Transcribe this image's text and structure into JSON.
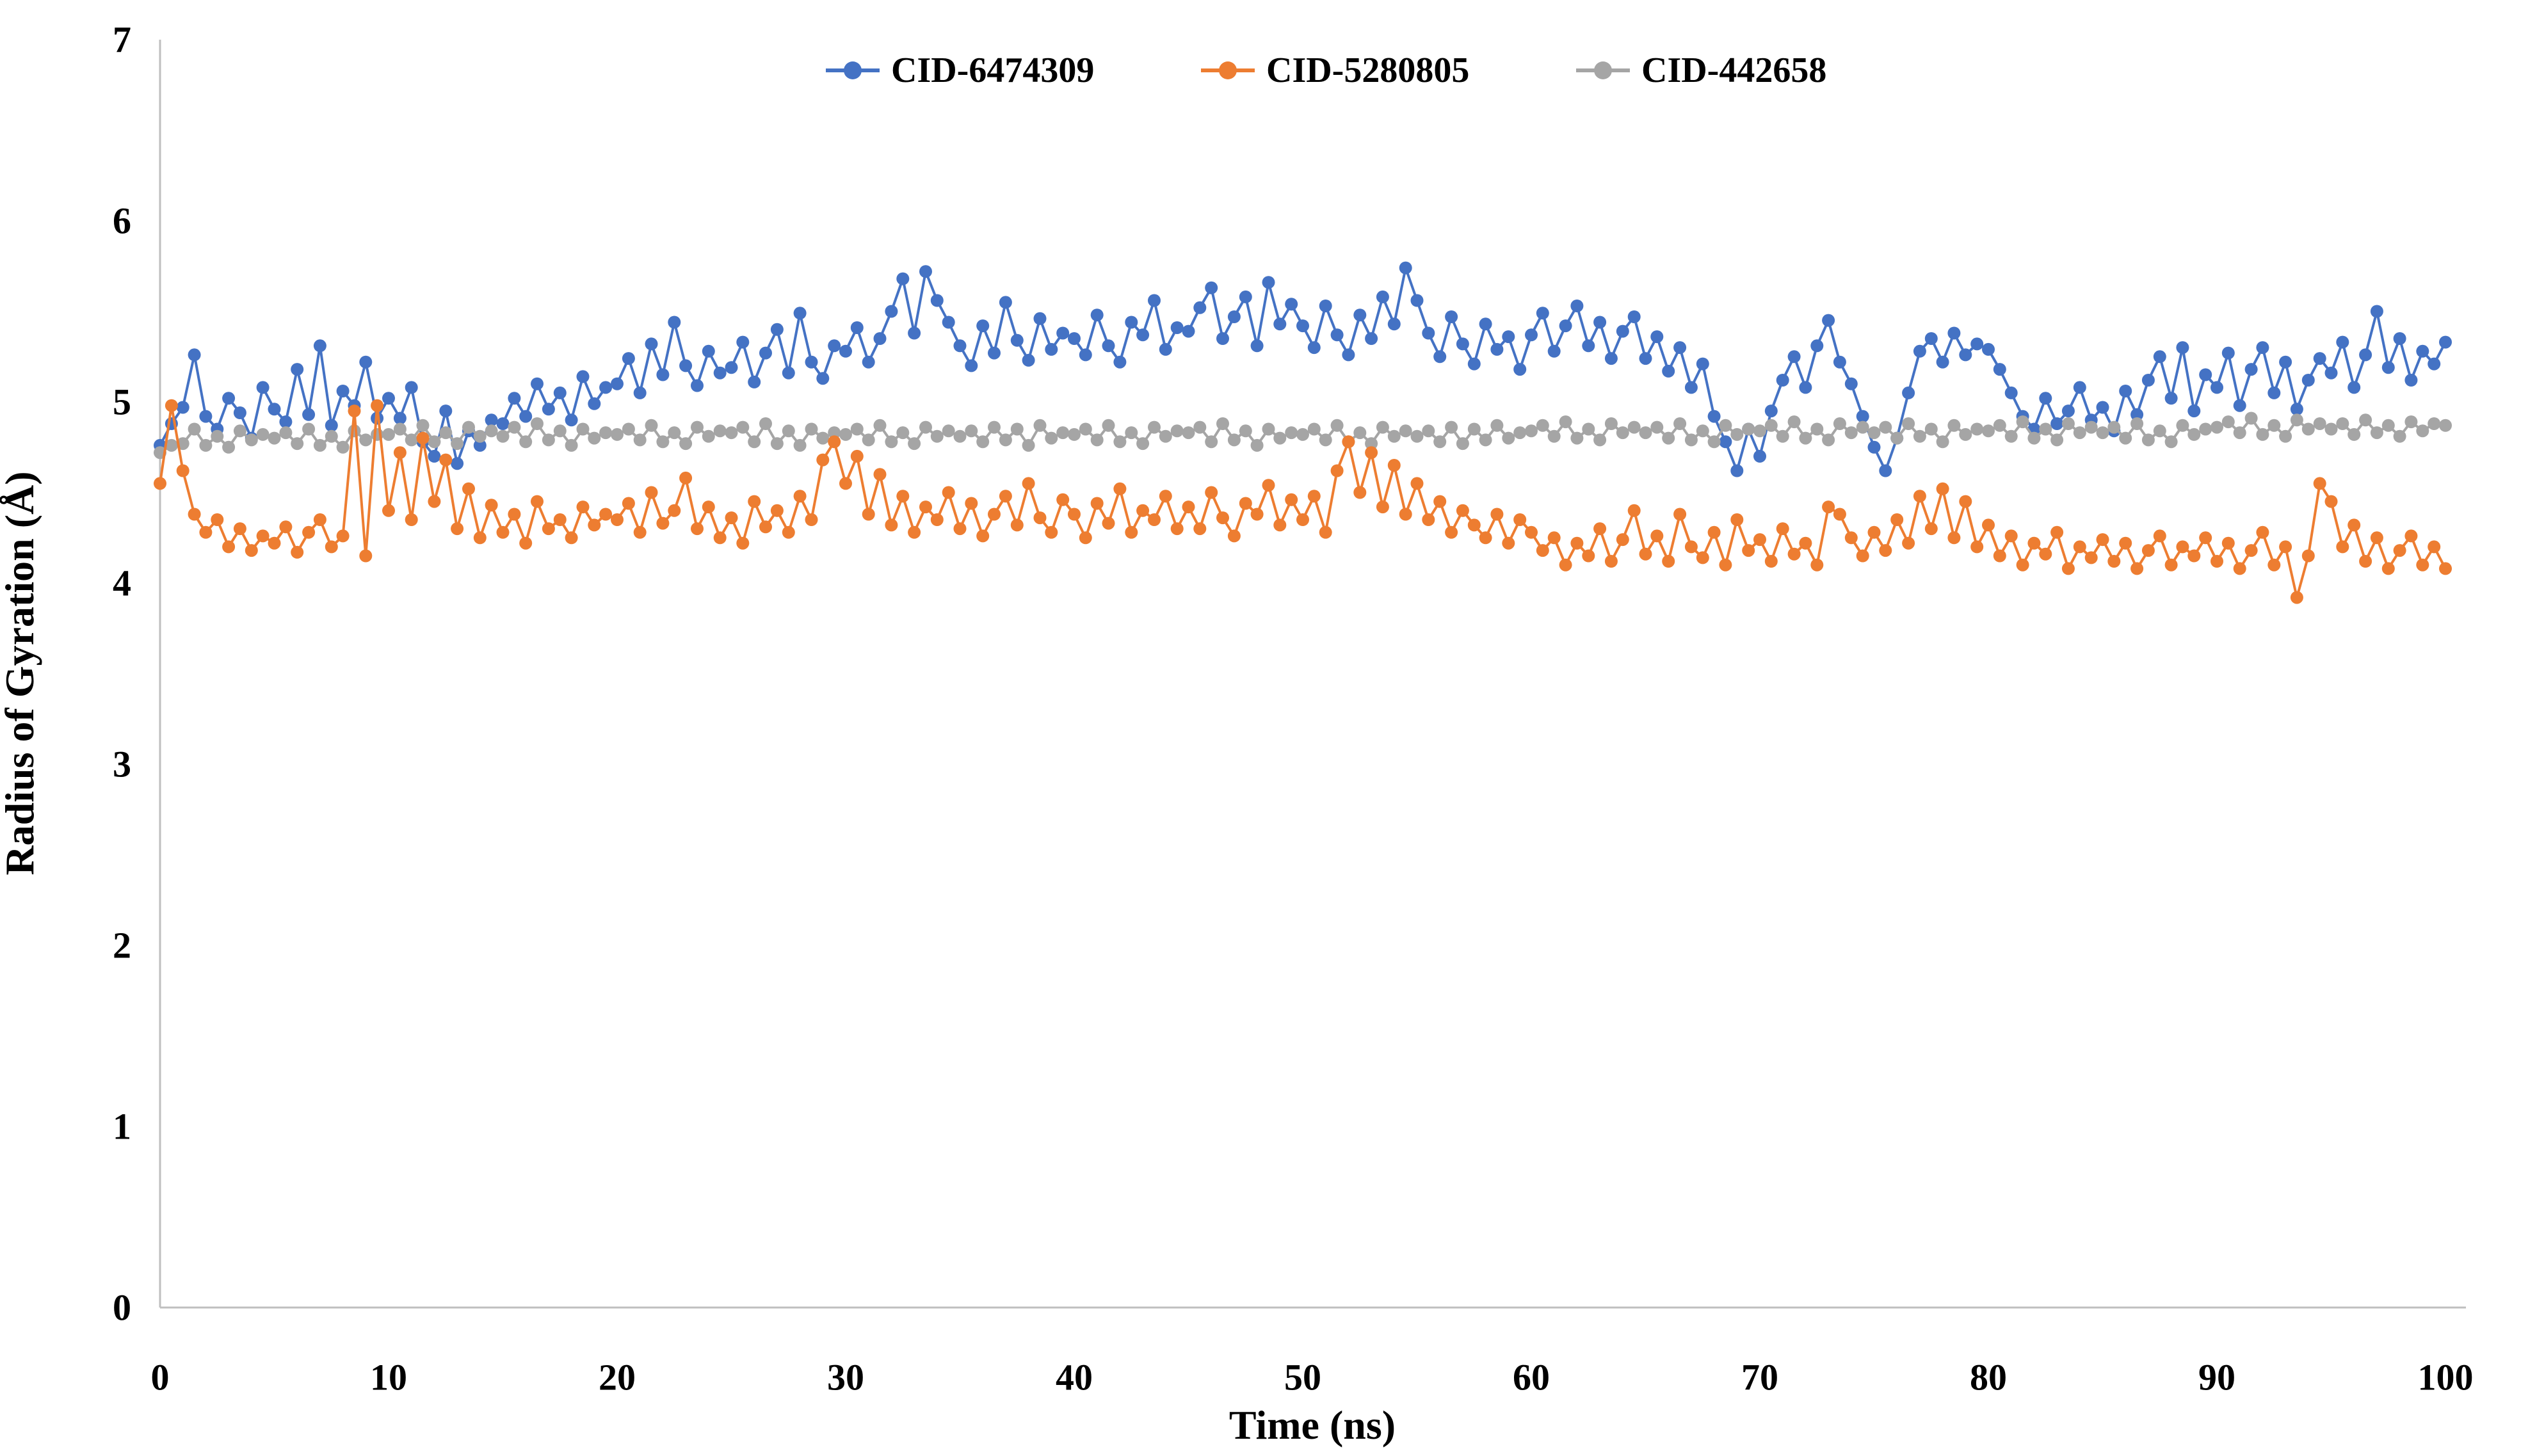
{
  "chart_data": {
    "type": "line",
    "title": "",
    "xlabel": "Time (ns)",
    "ylabel": "Radius of Gyration (Å)",
    "xlim": [
      0,
      100
    ],
    "ylim": [
      0,
      7
    ],
    "grid": false,
    "legend_position": "top-center",
    "marker": "circle",
    "x_ticks": [
      "0",
      "10",
      "20",
      "30",
      "40",
      "50",
      "60",
      "70",
      "80",
      "90",
      "100"
    ],
    "y_ticks": [
      "0",
      "1",
      "2",
      "3",
      "4",
      "5",
      "6",
      "7"
    ],
    "axis_line_color": "#BFBFBF",
    "x_start": 0,
    "x_step": 0.5,
    "series": [
      {
        "name": "CID-6474309",
        "color": "#4472C4",
        "values": [
          4.76,
          4.88,
          4.97,
          5.26,
          4.92,
          4.85,
          5.02,
          4.94,
          4.8,
          5.08,
          4.96,
          4.89,
          5.18,
          4.93,
          5.31,
          4.87,
          5.06,
          4.98,
          5.22,
          4.91,
          5.02,
          4.91,
          5.08,
          4.78,
          4.7,
          4.95,
          4.66,
          4.84,
          4.76,
          4.9,
          4.88,
          5.02,
          4.92,
          5.1,
          4.96,
          5.05,
          4.9,
          5.14,
          4.99,
          5.08,
          5.1,
          5.24,
          5.05,
          5.32,
          5.15,
          5.44,
          5.2,
          5.09,
          5.28,
          5.16,
          5.19,
          5.33,
          5.11,
          5.27,
          5.4,
          5.16,
          5.49,
          5.22,
          5.13,
          5.31,
          5.28,
          5.41,
          5.22,
          5.35,
          5.5,
          5.68,
          5.38,
          5.72,
          5.56,
          5.44,
          5.31,
          5.2,
          5.42,
          5.27,
          5.55,
          5.34,
          5.23,
          5.46,
          5.29,
          5.38,
          5.35,
          5.26,
          5.48,
          5.31,
          5.22,
          5.44,
          5.37,
          5.56,
          5.29,
          5.41,
          5.39,
          5.52,
          5.63,
          5.35,
          5.47,
          5.58,
          5.31,
          5.66,
          5.43,
          5.54,
          5.42,
          5.3,
          5.53,
          5.37,
          5.26,
          5.48,
          5.35,
          5.58,
          5.43,
          5.74,
          5.56,
          5.38,
          5.25,
          5.47,
          5.32,
          5.21,
          5.43,
          5.29,
          5.36,
          5.18,
          5.37,
          5.49,
          5.28,
          5.42,
          5.53,
          5.31,
          5.44,
          5.24,
          5.39,
          5.47,
          5.24,
          5.36,
          5.17,
          5.3,
          5.08,
          5.21,
          4.92,
          4.78,
          4.62,
          4.85,
          4.7,
          4.95,
          5.12,
          5.25,
          5.08,
          5.31,
          5.45,
          5.22,
          5.1,
          4.92,
          4.75,
          4.62,
          4.8,
          5.05,
          5.28,
          5.35,
          5.22,
          5.38,
          5.26,
          5.32,
          5.29,
          5.18,
          5.05,
          4.92,
          4.85,
          5.02,
          4.88,
          4.95,
          5.08,
          4.9,
          4.97,
          4.84,
          5.06,
          4.93,
          5.12,
          5.25,
          5.02,
          5.3,
          4.95,
          5.15,
          5.08,
          5.27,
          4.98,
          5.18,
          5.3,
          5.05,
          5.22,
          4.96,
          5.12,
          5.24,
          5.16,
          5.33,
          5.08,
          5.26,
          5.5,
          5.19,
          5.35,
          5.12,
          5.28,
          5.21,
          5.33
        ]
      },
      {
        "name": "CID-5280805",
        "color": "#ED7D31",
        "values": [
          4.55,
          4.98,
          4.62,
          4.38,
          4.28,
          4.35,
          4.2,
          4.3,
          4.18,
          4.26,
          4.22,
          4.31,
          4.17,
          4.28,
          4.35,
          4.2,
          4.26,
          4.95,
          4.15,
          4.98,
          4.4,
          4.72,
          4.35,
          4.8,
          4.45,
          4.68,
          4.3,
          4.52,
          4.25,
          4.43,
          4.28,
          4.38,
          4.22,
          4.45,
          4.3,
          4.35,
          4.25,
          4.42,
          4.32,
          4.38,
          4.35,
          4.44,
          4.28,
          4.5,
          4.33,
          4.4,
          4.58,
          4.3,
          4.42,
          4.25,
          4.36,
          4.22,
          4.45,
          4.31,
          4.4,
          4.28,
          4.48,
          4.35,
          4.68,
          4.78,
          4.55,
          4.7,
          4.38,
          4.6,
          4.32,
          4.48,
          4.28,
          4.42,
          4.35,
          4.5,
          4.3,
          4.44,
          4.26,
          4.38,
          4.48,
          4.32,
          4.55,
          4.36,
          4.28,
          4.46,
          4.38,
          4.25,
          4.44,
          4.33,
          4.52,
          4.28,
          4.4,
          4.35,
          4.48,
          4.3,
          4.42,
          4.3,
          4.5,
          4.36,
          4.26,
          4.44,
          4.38,
          4.54,
          4.32,
          4.46,
          4.35,
          4.48,
          4.28,
          4.62,
          4.78,
          4.5,
          4.72,
          4.42,
          4.65,
          4.38,
          4.55,
          4.35,
          4.45,
          4.28,
          4.4,
          4.32,
          4.25,
          4.38,
          4.22,
          4.35,
          4.28,
          4.18,
          4.25,
          4.1,
          4.22,
          4.15,
          4.3,
          4.12,
          4.24,
          4.4,
          4.16,
          4.26,
          4.12,
          4.38,
          4.2,
          4.14,
          4.28,
          4.1,
          4.35,
          4.18,
          4.24,
          4.12,
          4.3,
          4.16,
          4.22,
          4.1,
          4.42,
          4.38,
          4.25,
          4.15,
          4.28,
          4.18,
          4.35,
          4.22,
          4.48,
          4.3,
          4.52,
          4.25,
          4.45,
          4.2,
          4.32,
          4.15,
          4.26,
          4.1,
          4.22,
          4.16,
          4.28,
          4.08,
          4.2,
          4.14,
          4.24,
          4.12,
          4.22,
          4.08,
          4.18,
          4.26,
          4.1,
          4.2,
          4.15,
          4.25,
          4.12,
          4.22,
          4.08,
          4.18,
          4.28,
          4.1,
          4.2,
          3.92,
          4.15,
          4.55,
          4.45,
          4.2,
          4.32,
          4.12,
          4.25,
          4.08,
          4.18,
          4.26,
          4.1,
          4.2,
          4.08
        ]
      },
      {
        "name": "CID-442658",
        "color": "#A5A5A5",
        "values": [
          4.72,
          4.76,
          4.77,
          4.85,
          4.76,
          4.81,
          4.75,
          4.84,
          4.79,
          4.82,
          4.8,
          4.83,
          4.77,
          4.85,
          4.76,
          4.81,
          4.75,
          4.84,
          4.79,
          4.82,
          4.82,
          4.85,
          4.79,
          4.87,
          4.78,
          4.83,
          4.77,
          4.86,
          4.81,
          4.84,
          4.81,
          4.86,
          4.78,
          4.88,
          4.79,
          4.84,
          4.76,
          4.85,
          4.8,
          4.83,
          4.82,
          4.85,
          4.79,
          4.87,
          4.78,
          4.83,
          4.77,
          4.86,
          4.81,
          4.84,
          4.83,
          4.86,
          4.78,
          4.88,
          4.77,
          4.84,
          4.76,
          4.85,
          4.8,
          4.83,
          4.82,
          4.85,
          4.79,
          4.87,
          4.78,
          4.83,
          4.77,
          4.86,
          4.81,
          4.84,
          4.81,
          4.84,
          4.78,
          4.86,
          4.79,
          4.85,
          4.76,
          4.87,
          4.8,
          4.83,
          4.82,
          4.85,
          4.79,
          4.87,
          4.78,
          4.83,
          4.77,
          4.86,
          4.81,
          4.84,
          4.83,
          4.86,
          4.78,
          4.88,
          4.79,
          4.84,
          4.76,
          4.85,
          4.8,
          4.83,
          4.82,
          4.85,
          4.79,
          4.87,
          4.78,
          4.83,
          4.77,
          4.86,
          4.81,
          4.84,
          4.81,
          4.84,
          4.78,
          4.86,
          4.77,
          4.85,
          4.79,
          4.87,
          4.8,
          4.83,
          4.84,
          4.87,
          4.81,
          4.89,
          4.8,
          4.85,
          4.79,
          4.88,
          4.83,
          4.86,
          4.83,
          4.86,
          4.8,
          4.88,
          4.79,
          4.84,
          4.78,
          4.87,
          4.82,
          4.85,
          4.84,
          4.87,
          4.81,
          4.89,
          4.8,
          4.85,
          4.79,
          4.88,
          4.83,
          4.86,
          4.83,
          4.86,
          4.8,
          4.88,
          4.81,
          4.85,
          4.78,
          4.87,
          4.82,
          4.85,
          4.84,
          4.87,
          4.81,
          4.89,
          4.8,
          4.85,
          4.79,
          4.88,
          4.83,
          4.86,
          4.83,
          4.86,
          4.8,
          4.88,
          4.79,
          4.84,
          4.78,
          4.87,
          4.82,
          4.85,
          4.86,
          4.89,
          4.83,
          4.91,
          4.82,
          4.87,
          4.81,
          4.9,
          4.85,
          4.88,
          4.85,
          4.88,
          4.82,
          4.9,
          4.83,
          4.87,
          4.81,
          4.89,
          4.84,
          4.88,
          4.87
        ]
      }
    ]
  }
}
